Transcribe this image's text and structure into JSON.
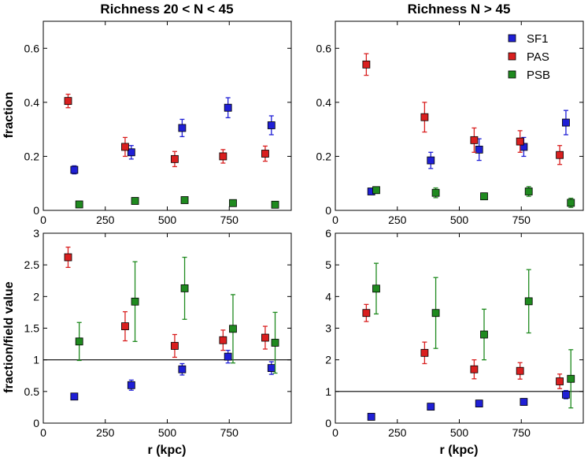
{
  "chart_data": [
    {
      "type": "scatter",
      "title": "Richness 20 < N < 45",
      "xlabel": "",
      "ylabel": "fraction",
      "xlim": [
        0,
        1000
      ],
      "ylim": [
        0,
        0.7
      ],
      "xticks": [
        0,
        250,
        500,
        750
      ],
      "xtick_labels": [
        "0",
        "250",
        "500",
        "750"
      ],
      "yticks": [
        0,
        0.2,
        0.4,
        0.6
      ],
      "ytick_labels": [
        "0",
        "0.2",
        "0.4",
        "0.6"
      ],
      "hline": null,
      "series": [
        {
          "name": "SF1",
          "color": "#1f1fd6",
          "x": [
            125,
            355,
            560,
            745,
            920
          ],
          "y": [
            0.15,
            0.215,
            0.305,
            0.38,
            0.315
          ],
          "err": [
            0.015,
            0.025,
            0.032,
            0.037,
            0.035
          ]
        },
        {
          "name": "PAS",
          "color": "#d91f1f",
          "x": [
            100,
            330,
            530,
            725,
            895
          ],
          "y": [
            0.405,
            0.235,
            0.19,
            0.2,
            0.21
          ],
          "err": [
            0.025,
            0.035,
            0.028,
            0.025,
            0.028
          ]
        },
        {
          "name": "PSB",
          "color": "#1f8a1f",
          "x": [
            145,
            370,
            570,
            765,
            935
          ],
          "y": [
            0.022,
            0.035,
            0.038,
            0.027,
            0.021
          ],
          "err": [
            0.004,
            0.007,
            0.005,
            0.005,
            0.004
          ]
        }
      ]
    },
    {
      "type": "scatter",
      "title": "Richness N > 45",
      "xlabel": "",
      "ylabel": "",
      "xlim": [
        0,
        1000
      ],
      "ylim": [
        0,
        0.7
      ],
      "xticks": [
        0,
        250,
        500,
        750
      ],
      "xtick_labels": [
        "0",
        "250",
        "500",
        "750"
      ],
      "yticks": [
        0,
        0.2,
        0.4,
        0.6
      ],
      "ytick_labels": [
        "0",
        "0.2",
        "0.4",
        "0.6"
      ],
      "hline": null,
      "legend": {
        "placement": "top-right",
        "entries": [
          "SF1",
          "PAS",
          "PSB"
        ]
      },
      "series": [
        {
          "name": "SF1",
          "color": "#1f1fd6",
          "x": [
            145,
            385,
            580,
            760,
            930
          ],
          "y": [
            0.07,
            0.185,
            0.225,
            0.235,
            0.325
          ],
          "err": [
            0.008,
            0.03,
            0.04,
            0.035,
            0.045
          ]
        },
        {
          "name": "PAS",
          "color": "#d91f1f",
          "x": [
            125,
            360,
            560,
            745,
            905
          ],
          "y": [
            0.54,
            0.345,
            0.26,
            0.255,
            0.205
          ],
          "err": [
            0.04,
            0.055,
            0.045,
            0.04,
            0.035
          ]
        },
        {
          "name": "PSB",
          "color": "#1f8a1f",
          "x": [
            165,
            405,
            600,
            780,
            950
          ],
          "y": [
            0.075,
            0.065,
            0.052,
            0.07,
            0.028
          ],
          "err": [
            0.012,
            0.018,
            0.012,
            0.018,
            0.017
          ]
        }
      ]
    },
    {
      "type": "scatter",
      "title": "",
      "xlabel": "r (kpc)",
      "ylabel": "fraction/field value",
      "xlim": [
        0,
        1000
      ],
      "ylim": [
        0,
        3
      ],
      "xticks": [
        0,
        250,
        500,
        750
      ],
      "xtick_labels": [
        "0",
        "250",
        "500",
        "750"
      ],
      "yticks": [
        0,
        0.5,
        1,
        1.5,
        2,
        2.5,
        3
      ],
      "ytick_labels": [
        "0",
        "0.5",
        "1",
        "1.5",
        "2",
        "2.5",
        "3"
      ],
      "hline": 1,
      "series": [
        {
          "name": "SF1",
          "color": "#1f1fd6",
          "x": [
            125,
            355,
            560,
            745,
            920
          ],
          "y": [
            0.42,
            0.6,
            0.85,
            1.05,
            0.87
          ],
          "err": [
            0.04,
            0.08,
            0.09,
            0.1,
            0.1
          ]
        },
        {
          "name": "PAS",
          "color": "#d91f1f",
          "x": [
            100,
            330,
            530,
            725,
            895
          ],
          "y": [
            2.62,
            1.53,
            1.22,
            1.31,
            1.35
          ],
          "err": [
            0.16,
            0.23,
            0.18,
            0.16,
            0.18
          ]
        },
        {
          "name": "PSB",
          "color": "#1f8a1f",
          "x": [
            145,
            370,
            570,
            765,
            935
          ],
          "y": [
            1.29,
            1.92,
            2.13,
            1.49,
            1.27
          ],
          "err": [
            0.3,
            0.63,
            0.49,
            0.54,
            0.48
          ]
        }
      ]
    },
    {
      "type": "scatter",
      "title": "",
      "xlabel": "r (kpc)",
      "ylabel": "",
      "xlim": [
        0,
        1000
      ],
      "ylim": [
        0,
        6
      ],
      "xticks": [
        0,
        250,
        500,
        750
      ],
      "xtick_labels": [
        "0",
        "250",
        "500",
        "750"
      ],
      "yticks": [
        0,
        1,
        2,
        3,
        4,
        5,
        6
      ],
      "ytick_labels": [
        "0",
        "1",
        "2",
        "3",
        "4",
        "5",
        "6"
      ],
      "hline": 1,
      "series": [
        {
          "name": "SF1",
          "color": "#1f1fd6",
          "x": [
            145,
            385,
            580,
            760,
            930
          ],
          "y": [
            0.2,
            0.52,
            0.62,
            0.67,
            0.9
          ],
          "err": [
            0.03,
            0.06,
            0.1,
            0.1,
            0.13
          ]
        },
        {
          "name": "PAS",
          "color": "#d91f1f",
          "x": [
            125,
            360,
            560,
            745,
            905
          ],
          "y": [
            3.48,
            2.22,
            1.7,
            1.65,
            1.32
          ],
          "err": [
            0.27,
            0.34,
            0.3,
            0.26,
            0.23
          ]
        },
        {
          "name": "PSB",
          "color": "#1f8a1f",
          "x": [
            165,
            405,
            600,
            780,
            950
          ],
          "y": [
            4.25,
            3.48,
            2.8,
            3.85,
            1.4
          ],
          "err": [
            0.8,
            1.12,
            0.8,
            1.0,
            0.92
          ]
        }
      ]
    }
  ]
}
